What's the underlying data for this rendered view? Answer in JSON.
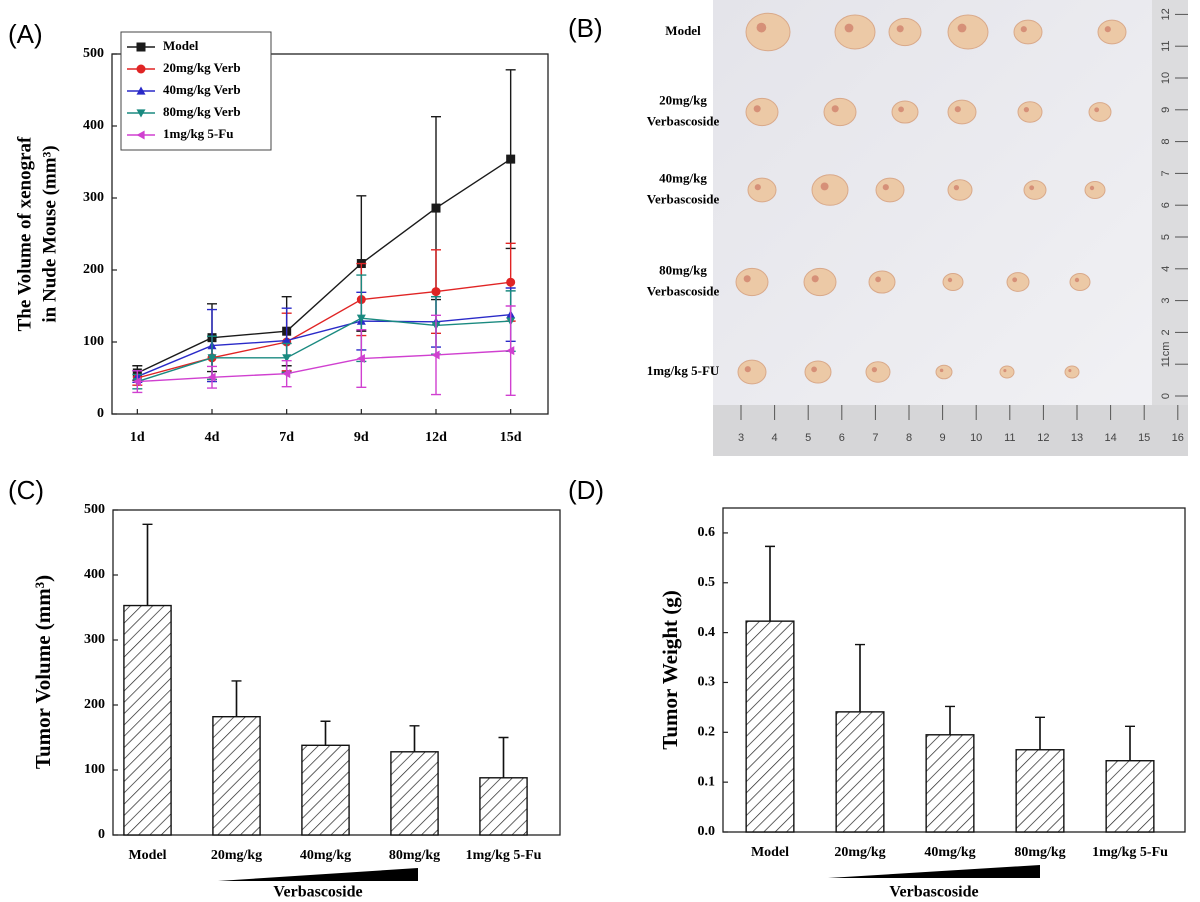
{
  "chart_data": [
    {
      "type": "line",
      "panel": "(A)",
      "y_label": [
        "The Volume of xenograf",
        "in Nude Mouse (mm³)"
      ],
      "categories": [
        "1d",
        "4d",
        "7d",
        "9d",
        "12d",
        "15d"
      ],
      "ylim": [
        0,
        500
      ],
      "yticks": [
        0,
        100,
        200,
        300,
        400,
        500
      ],
      "legend": "upper left",
      "series": [
        {
          "name": "Model",
          "color": "#1a1a1a",
          "marker": "square",
          "values": [
            57,
            106,
            115,
            209,
            286,
            354
          ],
          "errors": [
            10,
            47,
            48,
            94,
            127,
            124
          ]
        },
        {
          "name": "20mg/kg Verb",
          "color": "#e02424",
          "marker": "circle",
          "values": [
            50,
            78,
            100,
            159,
            170,
            183
          ],
          "errors": [
            10,
            30,
            40,
            50,
            58,
            54
          ]
        },
        {
          "name": "40mg/kg Verb",
          "color": "#2a2ac8",
          "marker": "triangle-up",
          "values": [
            52,
            95,
            102,
            129,
            128,
            138
          ],
          "errors": [
            8,
            50,
            45,
            40,
            35,
            37
          ]
        },
        {
          "name": "80mg/kg Verb",
          "color": "#1a8a80",
          "marker": "triangle-down",
          "values": [
            45,
            78,
            78,
            133,
            123,
            129
          ],
          "errors": [
            10,
            30,
            20,
            60,
            40,
            42
          ]
        },
        {
          "name": "1mg/kg 5-Fu",
          "color": "#d040d0",
          "marker": "triangle-left",
          "values": [
            45,
            51,
            56,
            77,
            82,
            88
          ],
          "errors": [
            15,
            15,
            18,
            40,
            55,
            62
          ]
        }
      ]
    },
    {
      "type": "bar",
      "panel": "(C)",
      "y_label": "Tumor Volume (mm³)",
      "categories": [
        "Model",
        "20mg/kg",
        "40mg/kg",
        "80mg/kg",
        "1mg/kg 5-Fu"
      ],
      "values": [
        353,
        182,
        138,
        128,
        88
      ],
      "errors": [
        125,
        55,
        37,
        40,
        62
      ],
      "ylim": [
        0,
        500
      ],
      "yticks": [
        0,
        100,
        200,
        300,
        400,
        500
      ],
      "hatch": "diagonal",
      "dose_label": "Verbascoside"
    },
    {
      "type": "bar",
      "panel": "(D)",
      "y_label": "Tumor Weight (g)",
      "categories": [
        "Model",
        "20mg/kg",
        "40mg/kg",
        "80mg/kg",
        "1mg/kg 5-Fu"
      ],
      "values": [
        0.423,
        0.241,
        0.195,
        0.165,
        0.143
      ],
      "errors": [
        0.15,
        0.135,
        0.057,
        0.065,
        0.069
      ],
      "ylim": [
        0,
        0.65
      ],
      "yticks": [
        {
          "value": 0,
          "label": "0.0"
        },
        0.1,
        0.2,
        0.3,
        0.4,
        0.5,
        0.6
      ],
      "hatch": "diagonal",
      "dose_label": "Verbascoside"
    }
  ],
  "photo": {
    "panel": "(B)",
    "row_labels": [
      [
        "Model"
      ],
      [
        "20mg/kg",
        "Verbascoside"
      ],
      [
        "40mg/kg",
        "Verbascoside"
      ],
      [
        "80mg/kg",
        "Verbascoside"
      ],
      [
        "1mg/kg 5-FU"
      ]
    ],
    "ruler_bottom": [
      3,
      4,
      5,
      6,
      7,
      8,
      9,
      10,
      11,
      12,
      13,
      14,
      15,
      16
    ],
    "ruler_right": [
      0,
      1,
      2,
      3,
      4,
      5,
      6,
      7,
      8,
      9,
      10,
      11,
      12
    ],
    "ruler_unit": "1cm"
  }
}
